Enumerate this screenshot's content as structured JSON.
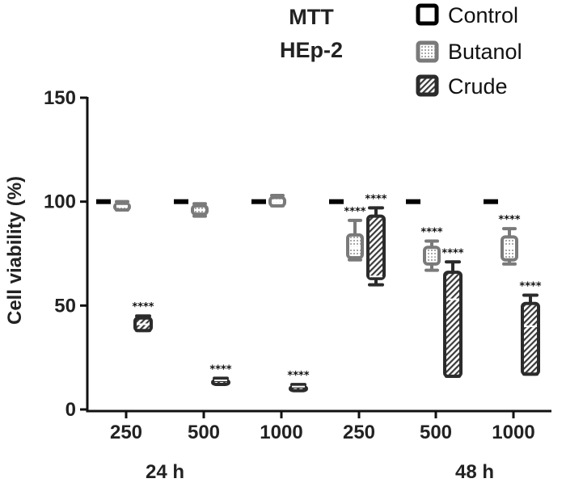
{
  "chart_data": {
    "type": "box",
    "title_lines": [
      "MTT",
      "HEp-2"
    ],
    "ylabel": "Cell viability (%)",
    "ylim": [
      0,
      150
    ],
    "yticks": [
      "0",
      "50",
      "100",
      "150"
    ],
    "categories": [
      "250",
      "500",
      "1000",
      "250",
      "500",
      "1000"
    ],
    "groups": [
      {
        "label": "24 h",
        "categories": [
          0,
          1,
          2
        ]
      },
      {
        "label": "48 h",
        "categories": [
          3,
          4,
          5
        ]
      }
    ],
    "legend": [
      {
        "label": "Control",
        "key": "control"
      },
      {
        "label": "Butanol",
        "key": "butanol"
      },
      {
        "label": "Crude",
        "key": "crude"
      }
    ],
    "series": [
      {
        "name": "Control",
        "key": "control",
        "values": [
          100,
          100,
          100,
          100,
          100,
          100
        ]
      },
      {
        "name": "Butanol",
        "key": "butanol",
        "boxes": [
          {
            "min": 96,
            "q1": 96,
            "median": 98,
            "q3": 99,
            "max": 100,
            "sig": ""
          },
          {
            "min": 93,
            "q1": 94,
            "median": 96,
            "q3": 98,
            "max": 99,
            "sig": ""
          },
          {
            "min": 98,
            "q1": 98,
            "median": 100,
            "q3": 102,
            "max": 103,
            "sig": ""
          },
          {
            "min": 72,
            "q1": 73,
            "median": 78,
            "q3": 84,
            "max": 91,
            "sig": "****"
          },
          {
            "min": 67,
            "q1": 70,
            "median": 74,
            "q3": 78,
            "max": 81,
            "sig": "****"
          },
          {
            "min": 70,
            "q1": 72,
            "median": 78,
            "q3": 83,
            "max": 87,
            "sig": "****"
          }
        ]
      },
      {
        "name": "Crude",
        "key": "crude",
        "boxes": [
          {
            "min": 38,
            "q1": 38,
            "median": 41,
            "q3": 44,
            "max": 45,
            "sig": "****"
          },
          {
            "min": 13,
            "q1": 13,
            "median": 14,
            "q3": 14,
            "max": 15,
            "sig": "****"
          },
          {
            "min": 10,
            "q1": 10,
            "median": 11,
            "q3": 11,
            "max": 12,
            "sig": "****"
          },
          {
            "min": 60,
            "q1": 63,
            "median": 64,
            "q3": 93,
            "max": 97,
            "sig": "****"
          },
          {
            "min": 16,
            "q1": 16,
            "median": 53,
            "q3": 66,
            "max": 71,
            "sig": "****"
          },
          {
            "min": 17,
            "q1": 17,
            "median": 40,
            "q3": 51,
            "max": 55,
            "sig": "****"
          }
        ]
      }
    ],
    "colors": {
      "control": "#000000",
      "butanol": "#7a7a7a",
      "crude": "#2b2b2b",
      "axis": "#111111"
    }
  }
}
